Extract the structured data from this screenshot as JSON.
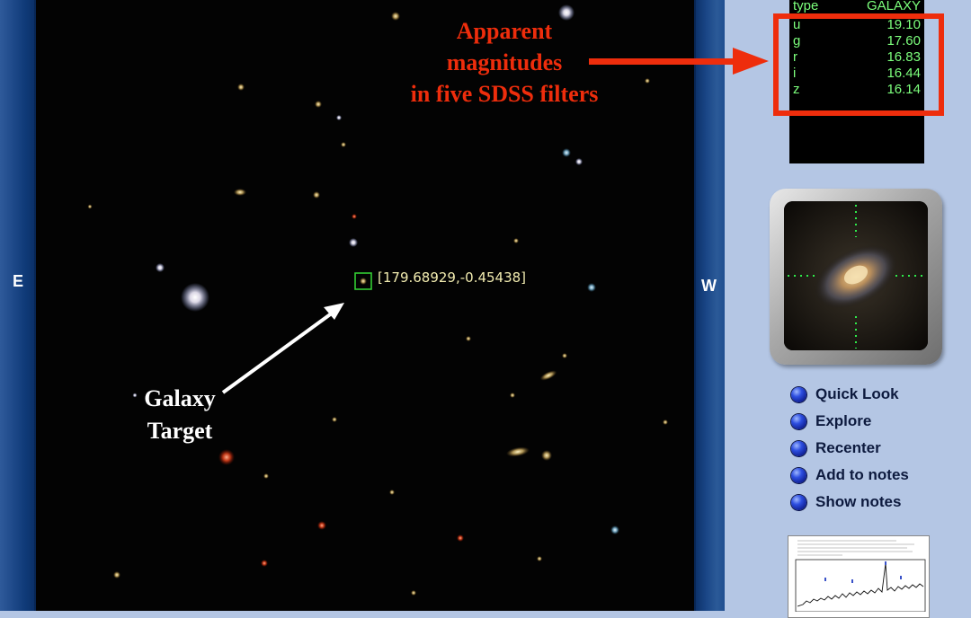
{
  "viewer": {
    "east_label": "E",
    "west_label": "W",
    "target_coords": "[179.68929,-0.45438]"
  },
  "annotations": {
    "galaxy_target": [
      "Galaxy",
      "Target"
    ],
    "magnitudes_note": [
      "Apparent",
      "magnitudes",
      "in five SDSS filters"
    ],
    "annotation_color": "#ee2d0c"
  },
  "magnitudes": {
    "type_label": "type",
    "type_value": "GALAXY",
    "rows": [
      {
        "filter": "u",
        "value": "19.10"
      },
      {
        "filter": "g",
        "value": "17.60"
      },
      {
        "filter": "r",
        "value": "16.83"
      },
      {
        "filter": "i",
        "value": "16.44"
      },
      {
        "filter": "z",
        "value": "16.14"
      }
    ]
  },
  "menu": {
    "items": [
      {
        "label": "Quick Look"
      },
      {
        "label": "Explore"
      },
      {
        "label": "Recenter"
      },
      {
        "label": "Add to notes"
      },
      {
        "label": "Show notes"
      }
    ]
  }
}
